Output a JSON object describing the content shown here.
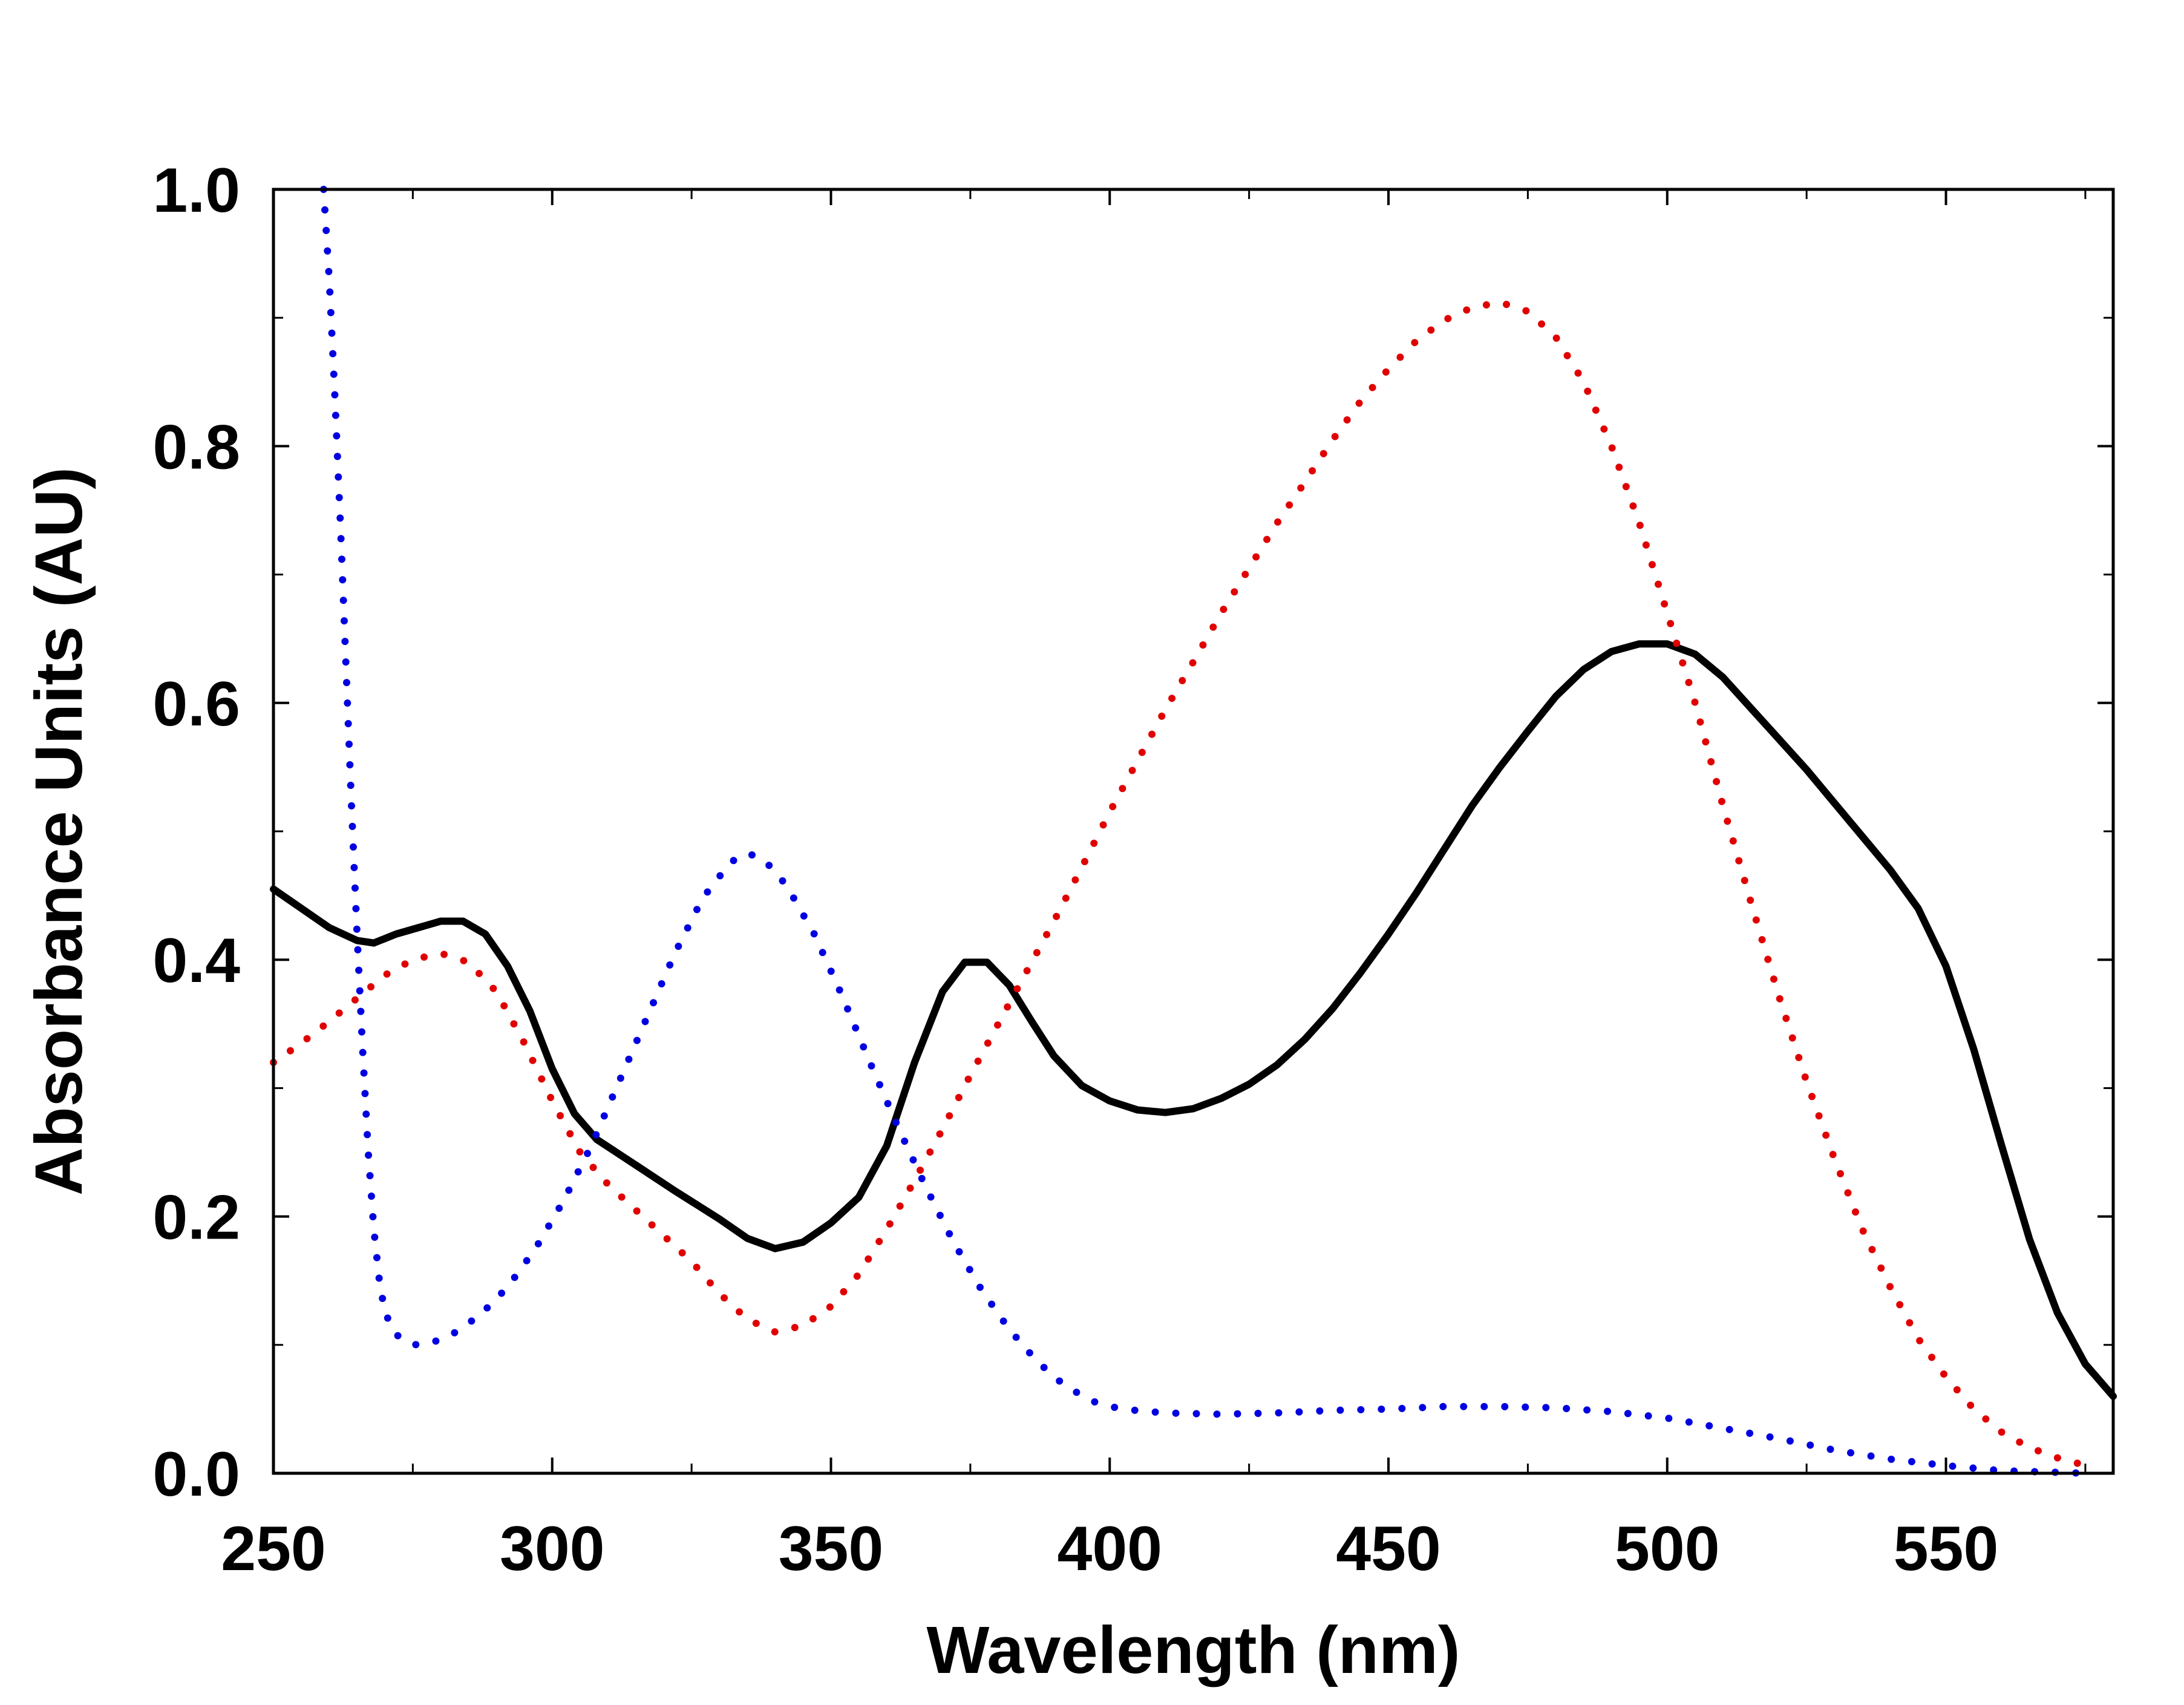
{
  "chart_data": {
    "type": "line",
    "title": "",
    "xlabel": "Wavelength (nm)",
    "ylabel": "Absorbance Units (AU)",
    "xlim": [
      250,
      580
    ],
    "ylim": [
      0.0,
      1.0
    ],
    "x_ticks": [
      250,
      300,
      350,
      400,
      450,
      500,
      550
    ],
    "x_tick_labels": [
      "250",
      "300",
      "350",
      "400",
      "450",
      "500",
      "550"
    ],
    "y_ticks": [
      0.0,
      0.2,
      0.4,
      0.6,
      0.8,
      1.0
    ],
    "y_tick_labels": [
      "0.0",
      "0.2",
      "0.4",
      "0.6",
      "0.8",
      "1.0"
    ],
    "x_minor_ticks": [
      275,
      325,
      375,
      425,
      475,
      525,
      575
    ],
    "y_minor_ticks": [
      0.1,
      0.3,
      0.5,
      0.7,
      0.9
    ],
    "grid": false,
    "legend": "none",
    "series": [
      {
        "color": "#000000",
        "style": "solid",
        "points": [
          [
            250,
            0.455
          ],
          [
            255,
            0.44
          ],
          [
            260,
            0.425
          ],
          [
            265,
            0.415
          ],
          [
            268,
            0.413
          ],
          [
            272,
            0.42
          ],
          [
            276,
            0.425
          ],
          [
            280,
            0.43
          ],
          [
            284,
            0.43
          ],
          [
            288,
            0.42
          ],
          [
            292,
            0.395
          ],
          [
            296,
            0.36
          ],
          [
            300,
            0.315
          ],
          [
            304,
            0.28
          ],
          [
            308,
            0.26
          ],
          [
            315,
            0.24
          ],
          [
            322,
            0.22
          ],
          [
            330,
            0.198
          ],
          [
            335,
            0.183
          ],
          [
            340,
            0.175
          ],
          [
            345,
            0.18
          ],
          [
            350,
            0.195
          ],
          [
            355,
            0.215
          ],
          [
            360,
            0.255
          ],
          [
            365,
            0.32
          ],
          [
            370,
            0.375
          ],
          [
            374,
            0.398
          ],
          [
            378,
            0.398
          ],
          [
            382,
            0.38
          ],
          [
            386,
            0.352
          ],
          [
            390,
            0.325
          ],
          [
            395,
            0.302
          ],
          [
            400,
            0.29
          ],
          [
            405,
            0.283
          ],
          [
            410,
            0.281
          ],
          [
            415,
            0.284
          ],
          [
            420,
            0.292
          ],
          [
            425,
            0.303
          ],
          [
            430,
            0.318
          ],
          [
            435,
            0.338
          ],
          [
            440,
            0.362
          ],
          [
            445,
            0.39
          ],
          [
            450,
            0.42
          ],
          [
            455,
            0.452
          ],
          [
            460,
            0.486
          ],
          [
            465,
            0.52
          ],
          [
            470,
            0.55
          ],
          [
            475,
            0.578
          ],
          [
            480,
            0.605
          ],
          [
            485,
            0.626
          ],
          [
            490,
            0.64
          ],
          [
            495,
            0.646
          ],
          [
            500,
            0.646
          ],
          [
            505,
            0.638
          ],
          [
            510,
            0.62
          ],
          [
            515,
            0.596
          ],
          [
            520,
            0.572
          ],
          [
            525,
            0.548
          ],
          [
            530,
            0.522
          ],
          [
            535,
            0.496
          ],
          [
            540,
            0.47
          ],
          [
            545,
            0.44
          ],
          [
            550,
            0.395
          ],
          [
            555,
            0.33
          ],
          [
            560,
            0.255
          ],
          [
            565,
            0.182
          ],
          [
            570,
            0.125
          ],
          [
            575,
            0.085
          ],
          [
            580,
            0.06
          ]
        ]
      },
      {
        "color": "#e00000",
        "style": "dotted",
        "points": [
          [
            250,
            0.32
          ],
          [
            255,
            0.335
          ],
          [
            260,
            0.352
          ],
          [
            265,
            0.37
          ],
          [
            270,
            0.388
          ],
          [
            275,
            0.4
          ],
          [
            280,
            0.405
          ],
          [
            285,
            0.398
          ],
          [
            290,
            0.375
          ],
          [
            295,
            0.335
          ],
          [
            300,
            0.29
          ],
          [
            305,
            0.25
          ],
          [
            310,
            0.225
          ],
          [
            315,
            0.205
          ],
          [
            320,
            0.185
          ],
          [
            325,
            0.165
          ],
          [
            330,
            0.14
          ],
          [
            335,
            0.12
          ],
          [
            340,
            0.11
          ],
          [
            345,
            0.115
          ],
          [
            350,
            0.13
          ],
          [
            355,
            0.155
          ],
          [
            360,
            0.19
          ],
          [
            365,
            0.228
          ],
          [
            370,
            0.268
          ],
          [
            375,
            0.31
          ],
          [
            380,
            0.35
          ],
          [
            385,
            0.39
          ],
          [
            390,
            0.43
          ],
          [
            395,
            0.472
          ],
          [
            400,
            0.515
          ],
          [
            405,
            0.555
          ],
          [
            410,
            0.595
          ],
          [
            415,
            0.632
          ],
          [
            420,
            0.67
          ],
          [
            425,
            0.705
          ],
          [
            430,
            0.74
          ],
          [
            435,
            0.772
          ],
          [
            440,
            0.805
          ],
          [
            445,
            0.835
          ],
          [
            450,
            0.86
          ],
          [
            455,
            0.882
          ],
          [
            460,
            0.898
          ],
          [
            465,
            0.908
          ],
          [
            470,
            0.912
          ],
          [
            475,
            0.905
          ],
          [
            480,
            0.885
          ],
          [
            485,
            0.85
          ],
          [
            490,
            0.8
          ],
          [
            495,
            0.74
          ],
          [
            500,
            0.67
          ],
          [
            505,
            0.6
          ],
          [
            510,
            0.52
          ],
          [
            515,
            0.445
          ],
          [
            520,
            0.372
          ],
          [
            525,
            0.305
          ],
          [
            530,
            0.245
          ],
          [
            535,
            0.19
          ],
          [
            540,
            0.145
          ],
          [
            545,
            0.105
          ],
          [
            550,
            0.075
          ],
          [
            555,
            0.05
          ],
          [
            560,
            0.032
          ],
          [
            565,
            0.02
          ],
          [
            570,
            0.012
          ],
          [
            576,
            0.005
          ]
        ]
      },
      {
        "color": "#0000e0",
        "style": "dotted",
        "points": [
          [
            259,
            1.0
          ],
          [
            260,
            0.93
          ],
          [
            261,
            0.84
          ],
          [
            262,
            0.74
          ],
          [
            263,
            0.63
          ],
          [
            264,
            0.52
          ],
          [
            265,
            0.42
          ],
          [
            266,
            0.33
          ],
          [
            267,
            0.25
          ],
          [
            268,
            0.19
          ],
          [
            269,
            0.15
          ],
          [
            270,
            0.125
          ],
          [
            272,
            0.108
          ],
          [
            275,
            0.1
          ],
          [
            278,
            0.101
          ],
          [
            282,
            0.108
          ],
          [
            287,
            0.123
          ],
          [
            292,
            0.145
          ],
          [
            297,
            0.175
          ],
          [
            302,
            0.212
          ],
          [
            307,
            0.255
          ],
          [
            312,
            0.305
          ],
          [
            317,
            0.355
          ],
          [
            322,
            0.405
          ],
          [
            327,
            0.448
          ],
          [
            332,
            0.476
          ],
          [
            335,
            0.483
          ],
          [
            338,
            0.478
          ],
          [
            342,
            0.458
          ],
          [
            347,
            0.42
          ],
          [
            352,
            0.372
          ],
          [
            357,
            0.32
          ],
          [
            362,
            0.27
          ],
          [
            367,
            0.223
          ],
          [
            372,
            0.18
          ],
          [
            377,
            0.143
          ],
          [
            382,
            0.112
          ],
          [
            387,
            0.087
          ],
          [
            392,
            0.068
          ],
          [
            397,
            0.056
          ],
          [
            402,
            0.05
          ],
          [
            410,
            0.047
          ],
          [
            420,
            0.046
          ],
          [
            430,
            0.047
          ],
          [
            440,
            0.049
          ],
          [
            450,
            0.05
          ],
          [
            460,
            0.052
          ],
          [
            470,
            0.052
          ],
          [
            480,
            0.051
          ],
          [
            490,
            0.048
          ],
          [
            500,
            0.043
          ],
          [
            510,
            0.035
          ],
          [
            520,
            0.027
          ],
          [
            530,
            0.018
          ],
          [
            540,
            0.011
          ],
          [
            550,
            0.006
          ],
          [
            560,
            0.002
          ],
          [
            568,
            0.001
          ],
          [
            575,
            0.0
          ]
        ]
      }
    ]
  }
}
